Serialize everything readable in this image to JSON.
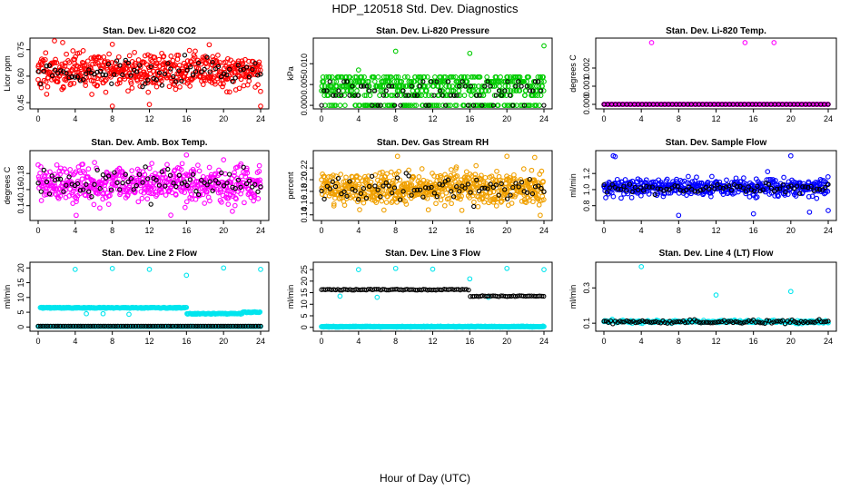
{
  "figure": {
    "title": "HDP_120518  Std. Dev. Diagnostics",
    "xlabel": "Hour of Day (UTC)"
  },
  "chart_data": [
    {
      "type": "scatter",
      "id": "co2",
      "title": "Stan. Dev. Li-820 CO2",
      "ylabel": "Licor ppm",
      "color": "#ff0000",
      "xlim": [
        0,
        24
      ],
      "ylim": [
        0.43,
        0.8
      ],
      "xticks": [
        "0",
        "4",
        "8",
        "12",
        "16",
        "20",
        "24"
      ],
      "yticks": [
        {
          "v": 0.45,
          "label": "0.45"
        },
        {
          "v": 0.6,
          "label": "0.60"
        },
        {
          "v": 0.75,
          "label": "0.75"
        }
      ],
      "series": {
        "pattern": "band",
        "n": 540,
        "center": 0.63,
        "spread": 0.07,
        "seed": 11,
        "outliers": [
          [
            8.0,
            0.78
          ],
          [
            8.0,
            0.43
          ],
          [
            12.0,
            0.44
          ],
          [
            24.0,
            0.43
          ]
        ],
        "black": {
          "center": 0.62,
          "spread": 0.05,
          "n": 80
        }
      }
    },
    {
      "type": "scatter",
      "id": "pressure",
      "title": "Stan. Dev. Li-820 Pressure",
      "ylabel": "kPa",
      "color": "#00cc00",
      "xlim": [
        0,
        24
      ],
      "ylim": [
        -0.0002,
        0.0155
      ],
      "xticks": [
        "0",
        "4",
        "8",
        "12",
        "16",
        "20",
        "24"
      ],
      "yticks": [
        {
          "v": 0.0,
          "label": "0.000"
        },
        {
          "v": 0.005,
          "label": "0.005"
        },
        {
          "v": 0.01,
          "label": "0.010"
        }
      ],
      "series": {
        "pattern": "levels",
        "levels": [
          0.0,
          0.0024,
          0.0035,
          0.0046,
          0.0057,
          0.0068
        ],
        "n": 520,
        "seed": 23,
        "outliers": [
          [
            4.0,
            0.0085
          ],
          [
            8.0,
            0.013
          ],
          [
            16.0,
            0.0125
          ],
          [
            24.0,
            0.0143
          ]
        ],
        "black": {
          "levels": [
            0.0,
            0.0024,
            0.0035,
            0.0046,
            0.0057
          ],
          "n": 80
        }
      }
    },
    {
      "type": "scatter",
      "id": "temp",
      "title": "Stan. Dev. Li-820 Temp.",
      "ylabel": "degrees C",
      "color": "#ff00ff",
      "xlim": [
        0,
        24
      ],
      "ylim": [
        -0.0001,
        0.0035
      ],
      "xticks": [
        "0",
        "4",
        "8",
        "12",
        "16",
        "20",
        "24"
      ],
      "yticks": [
        {
          "v": 0.0,
          "label": "0.000"
        },
        {
          "v": 0.001,
          "label": "0.001"
        },
        {
          "v": 0.002,
          "label": "0.002"
        }
      ],
      "series": {
        "pattern": "line",
        "value": 0.0,
        "n": 200,
        "seed": 5,
        "outliers": [
          [
            5.1,
            0.0034
          ],
          [
            15.1,
            0.0034
          ],
          [
            18.2,
            0.0034
          ]
        ],
        "black": {
          "value": 0.0,
          "n": 60
        }
      }
    },
    {
      "type": "scatter",
      "id": "ambbox",
      "title": "Stan. Dev. Amb. Box Temp.",
      "ylabel": "degrees C",
      "color": "#ff00ff",
      "xlim": [
        0,
        24
      ],
      "ylim": [
        0.125,
        0.205
      ],
      "xticks": [
        "0",
        "4",
        "8",
        "12",
        "16",
        "20",
        "24"
      ],
      "yticks": [
        {
          "v": 0.14,
          "label": "0.14"
        },
        {
          "v": 0.16,
          "label": "0.16"
        },
        {
          "v": 0.18,
          "label": "0.18"
        }
      ],
      "series": {
        "pattern": "band",
        "n": 520,
        "center": 0.167,
        "spread": 0.015,
        "seed": 31,
        "outliers": [
          [
            4.1,
            0.128
          ],
          [
            16.0,
            0.203
          ],
          [
            20.0,
            0.197
          ]
        ],
        "black": {
          "center": 0.168,
          "spread": 0.012,
          "n": 80
        }
      }
    },
    {
      "type": "scatter",
      "id": "rh",
      "title": "Stan. Dev. Gas Stream RH",
      "ylabel": "percent",
      "color": "#f0a000",
      "xlim": [
        0,
        24
      ],
      "ylim": [
        0.135,
        0.245
      ],
      "xticks": [
        "0",
        "4",
        "8",
        "12",
        "16",
        "20",
        "24"
      ],
      "yticks": [
        {
          "v": 0.14,
          "label": "0.14"
        },
        {
          "v": 0.16,
          "label": "0.16"
        },
        {
          "v": 0.18,
          "label": "0.18"
        },
        {
          "v": 0.2,
          "label": "0.20"
        },
        {
          "v": 0.22,
          "label": "0.22"
        }
      ],
      "series": {
        "pattern": "band",
        "n": 620,
        "center": 0.185,
        "spread": 0.018,
        "seed": 47,
        "outliers": [
          [
            8.2,
            0.24
          ],
          [
            20.0,
            0.24
          ],
          [
            23.0,
            0.238
          ]
        ],
        "black": {
          "center": 0.185,
          "spread": 0.013,
          "n": 80
        }
      }
    },
    {
      "type": "scatter",
      "id": "sampleflow",
      "title": "Stan. Dev. Sample Flow",
      "ylabel": "ml/min",
      "color": "#0000ff",
      "xlim": [
        0,
        24
      ],
      "ylim": [
        0.65,
        1.45
      ],
      "xticks": [
        "0",
        "4",
        "8",
        "12",
        "16",
        "20",
        "24"
      ],
      "yticks": [
        {
          "v": 0.8,
          "label": "0.8"
        },
        {
          "v": 1.0,
          "label": "1.0"
        },
        {
          "v": 1.2,
          "label": "1.2"
        }
      ],
      "series": {
        "pattern": "band",
        "n": 460,
        "center": 1.03,
        "spread": 0.07,
        "seed": 59,
        "outliers": [
          [
            1.0,
            1.42
          ],
          [
            1.2,
            1.41
          ],
          [
            8.0,
            0.68
          ],
          [
            16.0,
            0.7
          ],
          [
            20.0,
            1.42
          ],
          [
            22.0,
            0.72
          ],
          [
            24.0,
            0.74
          ]
        ],
        "black": {
          "center": 1.02,
          "spread": 0.04,
          "n": 80
        }
      }
    },
    {
      "type": "scatter",
      "id": "line2",
      "title": "Stan. Dev. Line 2 Flow",
      "ylabel": "ml/min",
      "color": "#00e5ee",
      "xlim": [
        0,
        24
      ],
      "ylim": [
        -0.5,
        21
      ],
      "xticks": [
        "0",
        "4",
        "8",
        "12",
        "16",
        "20",
        "24"
      ],
      "yticks": [
        {
          "v": 0,
          "label": "0"
        },
        {
          "v": 5,
          "label": "5"
        },
        {
          "v": 10,
          "label": "10"
        },
        {
          "v": 15,
          "label": "15"
        },
        {
          "v": 20,
          "label": "20"
        }
      ],
      "series": {
        "pattern": "steps",
        "steps": [
          [
            0.2,
            16.0,
            6.5
          ],
          [
            16.0,
            22.0,
            4.5
          ],
          [
            22.0,
            24.0,
            5.0
          ]
        ],
        "n": 300,
        "seed": 71,
        "baseline": 0.2,
        "outliers": [
          [
            4.0,
            19.5
          ],
          [
            8.0,
            19.8
          ],
          [
            12.0,
            19.5
          ],
          [
            16.0,
            17.5
          ],
          [
            20.0,
            20.0
          ],
          [
            24.0,
            19.5
          ],
          [
            5.2,
            4.5
          ],
          [
            7.0,
            4.5
          ],
          [
            9.8,
            4.3
          ]
        ],
        "black": {
          "value": 0.3,
          "n": 90
        }
      }
    },
    {
      "type": "scatter",
      "id": "line3",
      "title": "Stan. Dev. Line 3 Flow",
      "ylabel": "ml/min",
      "color": "#00e5ee",
      "xlim": [
        0,
        24
      ],
      "ylim": [
        -0.5,
        27
      ],
      "xticks": [
        "0",
        "4",
        "8",
        "12",
        "16",
        "20",
        "24"
      ],
      "yticks": [
        {
          "v": 0,
          "label": "0"
        },
        {
          "v": 5,
          "label": "5"
        },
        {
          "v": 10,
          "label": "10"
        },
        {
          "v": 15,
          "label": "15"
        },
        {
          "v": 20,
          "label": "20"
        },
        {
          "v": 25,
          "label": "25"
        }
      ],
      "series": {
        "pattern": "steps",
        "steps": [
          [
            0.0,
            24.0,
            0.3
          ]
        ],
        "n": 320,
        "seed": 83,
        "baseline": 0.3,
        "outliers": [
          [
            4.0,
            25.0
          ],
          [
            8.0,
            25.5
          ],
          [
            12.0,
            25.2
          ],
          [
            16.0,
            21.0
          ],
          [
            20.0,
            25.5
          ],
          [
            24.0,
            25.0
          ],
          [
            2.0,
            13.5
          ],
          [
            6.0,
            13.0
          ],
          [
            18.0,
            13.0
          ]
        ],
        "black": {
          "steps": [
            [
              0.0,
              16.0,
              16.3
            ],
            [
              16.0,
              24.0,
              13.5
            ]
          ],
          "n": 110
        }
      }
    },
    {
      "type": "scatter",
      "id": "line4",
      "title": "Stan. Dev. Line 4 (LT) Flow",
      "ylabel": "ml/min",
      "color": "#00e5ee",
      "xlim": [
        0,
        24
      ],
      "ylim": [
        0.07,
        0.43
      ],
      "xticks": [
        "0",
        "4",
        "8",
        "12",
        "16",
        "20",
        "24"
      ],
      "yticks": [
        {
          "v": 0.1,
          "label": "0.1"
        },
        {
          "v": 0.3,
          "label": "0.3"
        }
      ],
      "series": {
        "pattern": "band",
        "n": 240,
        "center": 0.108,
        "spread": 0.006,
        "seed": 97,
        "outliers": [
          [
            4.0,
            0.42
          ],
          [
            12.0,
            0.26
          ],
          [
            20.0,
            0.28
          ]
        ],
        "black": {
          "center": 0.108,
          "spread": 0.006,
          "n": 100
        }
      }
    }
  ]
}
